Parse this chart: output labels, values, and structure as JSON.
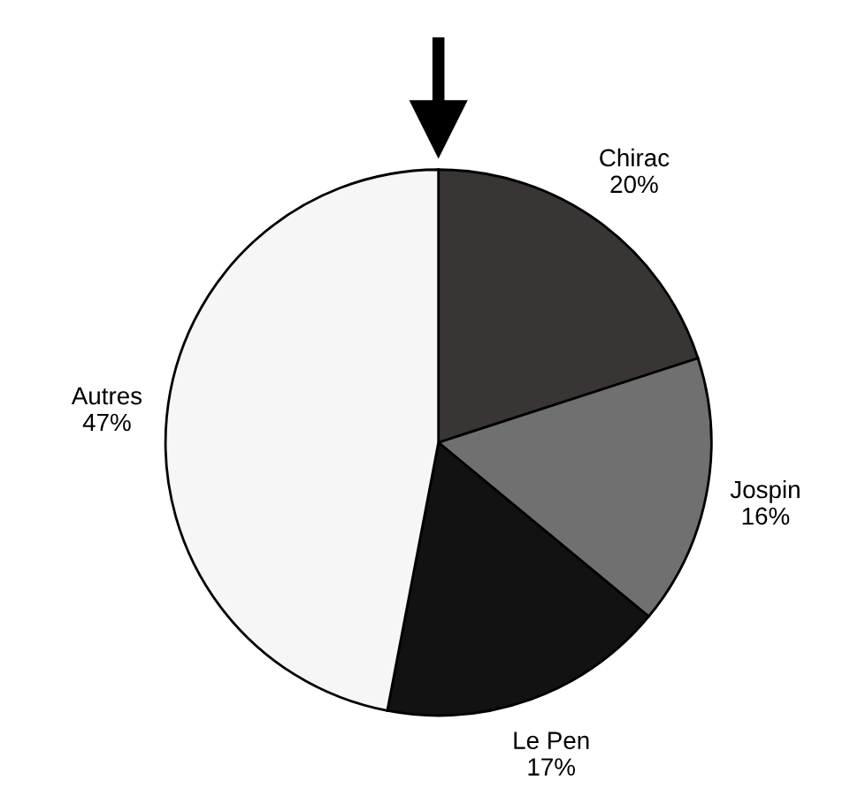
{
  "chart_data": {
    "type": "pie",
    "categories": [
      "Chirac",
      "Jospin",
      "Le Pen",
      "Autres"
    ],
    "values": [
      20,
      16,
      17,
      47
    ],
    "value_labels": [
      "20%",
      "16%",
      "17%",
      "47%"
    ],
    "colors": [
      "#3a3535",
      "#707070",
      "#121212",
      "#f6f6f6"
    ],
    "legend": false
  }
}
